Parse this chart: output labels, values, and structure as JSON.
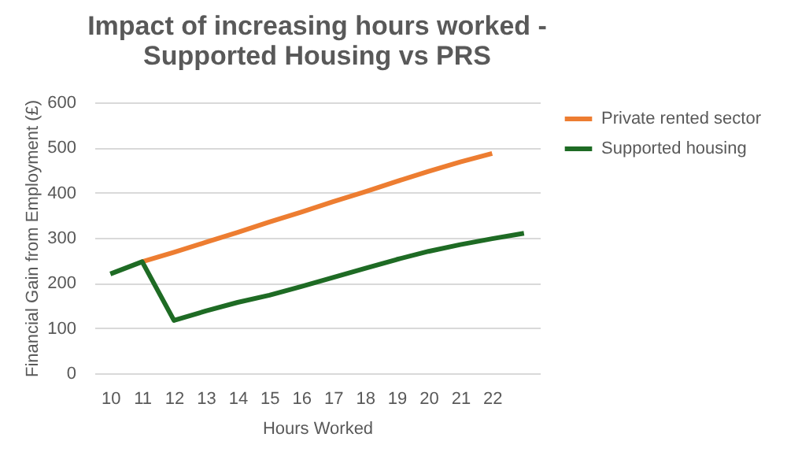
{
  "chart_data": {
    "type": "line",
    "title": "Impact of increasing hours worked - Supported Housing vs PRS",
    "xlabel": "Hours Worked",
    "ylabel": "Financial Gain from Employment (£)",
    "categories": [
      "10",
      "11",
      "12",
      "13",
      "14",
      "15",
      "16",
      "17",
      "18",
      "19",
      "20",
      "21",
      "22",
      null
    ],
    "series": [
      {
        "name": "Private rented sector",
        "color": "#ed7d31",
        "values": [
          null,
          247,
          268,
          290,
          312,
          335,
          357,
          380,
          402,
          425,
          447,
          468,
          487,
          null
        ]
      },
      {
        "name": "Supported housing",
        "color": "#1e6b24",
        "values": [
          220,
          247,
          117,
          138,
          157,
          173,
          192,
          212,
          232,
          252,
          270,
          285,
          298,
          310
        ]
      }
    ],
    "ylim": [
      0,
      600
    ],
    "yticks": [
      0,
      100,
      200,
      300,
      400,
      500,
      600
    ],
    "grid": "y",
    "legend": "right",
    "line_style": "solid",
    "marker": "none"
  }
}
